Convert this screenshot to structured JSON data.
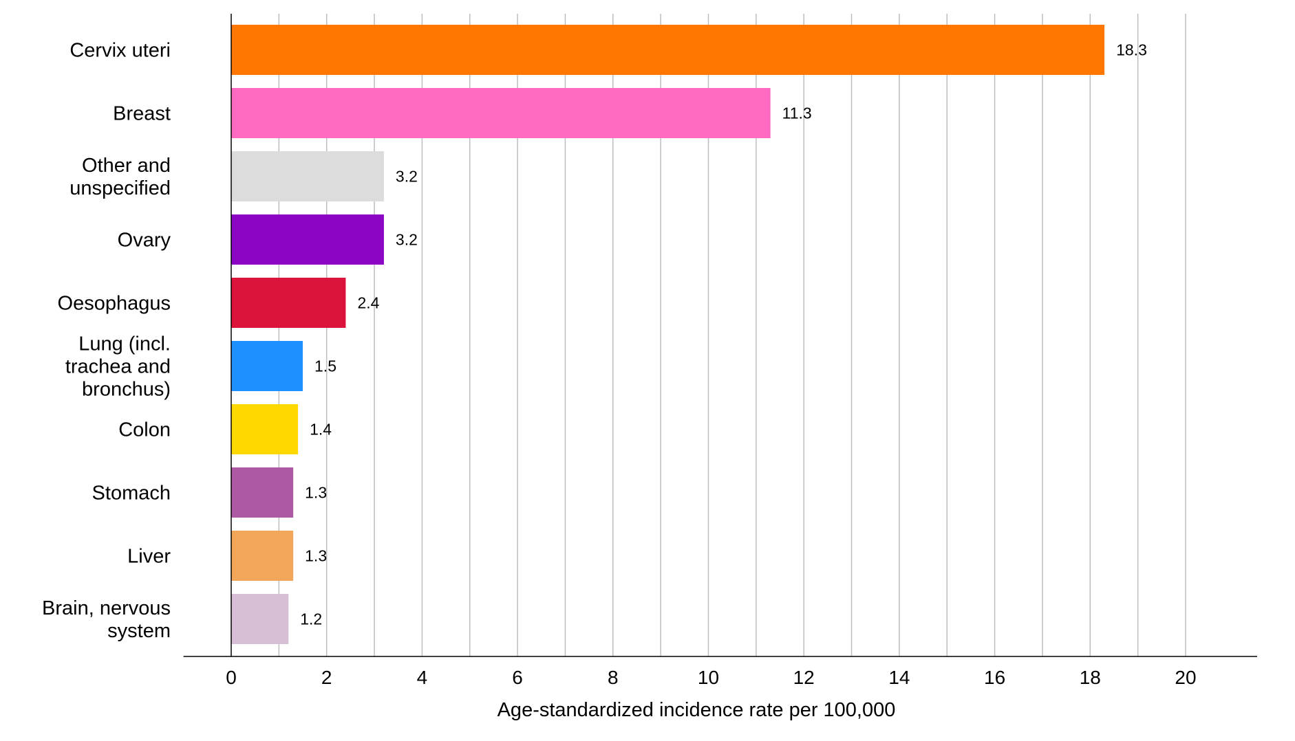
{
  "chart_data": {
    "type": "bar",
    "orientation": "horizontal",
    "title": "",
    "xlabel": "Age-standardized incidence rate per 100,000",
    "ylabel": "",
    "xlim": [
      -1,
      21.5
    ],
    "x_ticks": [
      0,
      2,
      4,
      6,
      8,
      10,
      12,
      14,
      16,
      18,
      20
    ],
    "grid": "vertical lines at every 1 unit",
    "legend": "none",
    "categories": [
      [
        "Cervix uteri"
      ],
      [
        "Breast"
      ],
      [
        "Other and",
        "unspecified"
      ],
      [
        "Ovary"
      ],
      [
        "Oesophagus"
      ],
      [
        "Lung (incl.",
        "trachea and",
        "bronchus)"
      ],
      [
        "Colon"
      ],
      [
        "Stomach"
      ],
      [
        "Liver"
      ],
      [
        "Brain, nervous",
        "system"
      ]
    ],
    "values": [
      18.3,
      11.3,
      3.2,
      3.2,
      2.4,
      1.5,
      1.4,
      1.3,
      1.3,
      1.2
    ],
    "value_labels": [
      "18.3",
      "11.3",
      "3.2",
      "3.2",
      "2.4",
      "1.5",
      "1.4",
      "1.3",
      "1.3",
      "1.2"
    ],
    "colors": [
      "#ff7700",
      "#ff69bf",
      "#dcdcdc",
      "#8c05c4",
      "#dc143c",
      "#1e90ff",
      "#ffd800",
      "#ad59a3",
      "#f2a65a",
      "#d6bed4"
    ]
  }
}
